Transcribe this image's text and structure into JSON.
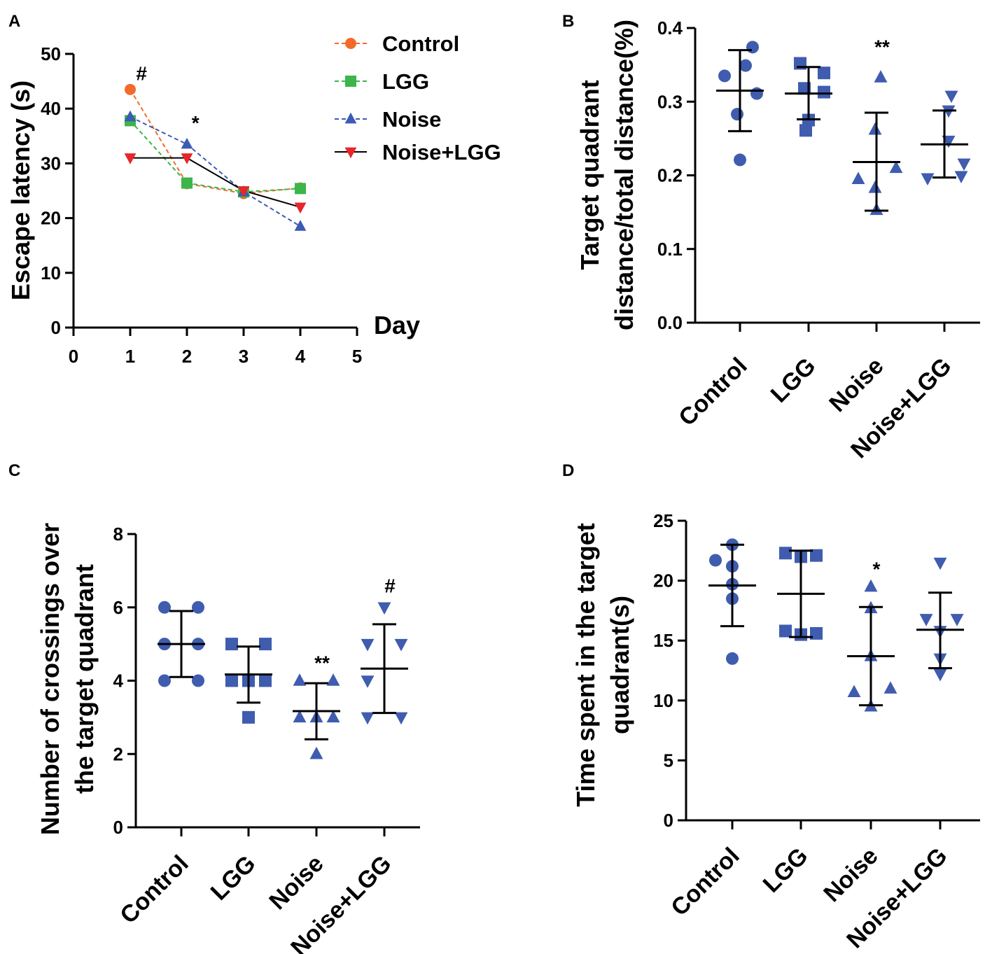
{
  "colors": {
    "control": "#F26B2A",
    "lgg": "#3CB54A",
    "noise": "#3B5BB5",
    "noise_lgg": "#E8262A",
    "scatter": "#3F5CAF",
    "axis": "#000000"
  },
  "chart_data": [
    {
      "panel": "A",
      "type": "line",
      "xlabel": "Day",
      "ylabel": "Escape latency (s)",
      "x": [
        1,
        2,
        3,
        4
      ],
      "xlim": [
        0,
        5
      ],
      "ylim": [
        0,
        50
      ],
      "xticks": [
        "0",
        "1",
        "2",
        "3",
        "4",
        "5"
      ],
      "yticks": [
        "0",
        "10",
        "20",
        "30",
        "40",
        "50"
      ],
      "series": [
        {
          "name": "Control",
          "marker": "circle",
          "line": "dashed",
          "values": [
            43.5,
            26.3,
            24.5,
            25.5
          ]
        },
        {
          "name": "LGG",
          "marker": "square",
          "line": "dashed",
          "values": [
            37.8,
            26.4,
            24.8,
            25.4
          ]
        },
        {
          "name": "Noise",
          "marker": "triangle-up",
          "line": "dashed",
          "values": [
            38.5,
            33.5,
            24.8,
            18.5
          ]
        },
        {
          "name": "Noise+LGG",
          "marker": "triangle-down",
          "line": "solid",
          "values": [
            31.0,
            31.0,
            25.0,
            22.0
          ]
        }
      ],
      "annotations": [
        {
          "text": "#",
          "x": 1.2,
          "y": 46.5
        },
        {
          "text": "*",
          "x": 2.15,
          "y": 37.5
        }
      ]
    },
    {
      "panel": "B",
      "type": "scatter",
      "ylabel_lines": [
        "Target quadrant",
        "distance/total distance(%)"
      ],
      "categories": [
        "Control",
        "LGG",
        "Noise",
        "Noise+LGG"
      ],
      "ylim": [
        0,
        0.4
      ],
      "yticks": [
        "0.0",
        "0.1",
        "0.2",
        "0.3",
        "0.4"
      ],
      "groups": [
        {
          "name": "Control",
          "marker": "circle",
          "points": [
            0.374,
            0.335,
            0.349,
            0.311,
            0.283,
            0.221
          ],
          "mean": 0.315,
          "sd_low": 0.26,
          "sd_high": 0.37
        },
        {
          "name": "LGG",
          "marker": "square",
          "points": [
            0.352,
            0.339,
            0.318,
            0.313,
            0.275,
            0.261
          ],
          "mean": 0.311,
          "sd_low": 0.276,
          "sd_high": 0.347
        },
        {
          "name": "Noise",
          "marker": "triangle-up",
          "points": [
            0.333,
            0.262,
            0.195,
            0.21,
            0.183,
            0.153
          ],
          "mean": 0.218,
          "sd_low": 0.152,
          "sd_high": 0.285
        },
        {
          "name": "Noise+LGG",
          "marker": "triangle-down",
          "points": [
            0.308,
            0.288,
            0.247,
            0.216,
            0.196,
            0.199
          ],
          "mean": 0.242,
          "sd_low": 0.197,
          "sd_high": 0.288
        }
      ],
      "annotations": [
        {
          "text": "**",
          "group": "Noise",
          "y": 0.375
        }
      ]
    },
    {
      "panel": "C",
      "type": "scatter",
      "ylabel_lines": [
        "Number of crossings over",
        "the target quadrant"
      ],
      "categories": [
        "Control",
        "LGG",
        "Noise",
        "Noise+LGG"
      ],
      "ylim": [
        0,
        8
      ],
      "yticks": [
        "0",
        "2",
        "4",
        "6",
        "8"
      ],
      "groups": [
        {
          "name": "Control",
          "marker": "circle",
          "points": [
            6,
            6,
            5,
            5,
            4,
            4
          ],
          "mean": 5.0,
          "sd_low": 4.1,
          "sd_high": 5.9
        },
        {
          "name": "LGG",
          "marker": "square",
          "points": [
            5,
            5,
            4,
            4,
            4,
            3
          ],
          "mean": 4.17,
          "sd_low": 3.4,
          "sd_high": 4.93
        },
        {
          "name": "Noise",
          "marker": "triangle-up",
          "points": [
            4,
            4,
            3,
            3,
            3,
            2
          ],
          "mean": 3.17,
          "sd_low": 2.4,
          "sd_high": 3.93
        },
        {
          "name": "Noise+LGG",
          "marker": "triangle-down",
          "points": [
            6,
            5,
            5,
            4,
            3,
            3
          ],
          "mean": 4.33,
          "sd_low": 3.12,
          "sd_high": 5.54
        }
      ],
      "annotations": [
        {
          "text": "**",
          "group": "Noise",
          "y": 4.5
        },
        {
          "text": "#",
          "group": "Noise+LGG",
          "y": 6.6
        }
      ]
    },
    {
      "panel": "D",
      "type": "scatter",
      "ylabel_lines": [
        "Time spent in the target",
        "quadrant(s)"
      ],
      "categories": [
        "Control",
        "LGG",
        "Noise",
        "Noise+LGG"
      ],
      "ylim": [
        0,
        25
      ],
      "yticks": [
        "0",
        "5",
        "10",
        "15",
        "20",
        "25"
      ],
      "groups": [
        {
          "name": "Control",
          "marker": "circle",
          "points": [
            23.0,
            21.7,
            21.2,
            19.7,
            18.5,
            13.5
          ],
          "mean": 19.6,
          "sd_low": 16.2,
          "sd_high": 23.0
        },
        {
          "name": "LGG",
          "marker": "square",
          "points": [
            22.3,
            22.1,
            22.0,
            15.8,
            15.6,
            15.5
          ],
          "mean": 18.9,
          "sd_low": 15.3,
          "sd_high": 22.5
        },
        {
          "name": "Noise",
          "marker": "triangle-up",
          "points": [
            19.5,
            17.7,
            13.7,
            11.0,
            10.7,
            9.5
          ],
          "mean": 13.7,
          "sd_low": 9.6,
          "sd_high": 17.8
        },
        {
          "name": "Noise+LGG",
          "marker": "triangle-down",
          "points": [
            21.5,
            16.8,
            16.8,
            15.8,
            13.5,
            12.2
          ],
          "mean": 15.9,
          "sd_low": 12.7,
          "sd_high": 19.0
        }
      ],
      "annotations": [
        {
          "text": "*",
          "group": "Noise",
          "y": 21.0
        }
      ]
    }
  ],
  "panels": {
    "a": {
      "letter": "A",
      "ylabel": "Escape latency (s)",
      "xlabel": "Day",
      "legend": [
        "Control",
        "LGG",
        "Noise",
        "Noise+LGG"
      ]
    },
    "b": {
      "letter": "B",
      "ylabel_1": "Target quadrant",
      "ylabel_2": "distance/total distance(%)"
    },
    "c": {
      "letter": "C",
      "ylabel_1": "Number of crossings over",
      "ylabel_2": "the target quadrant"
    },
    "d": {
      "letter": "D",
      "ylabel_1": "Time spent in the target",
      "ylabel_2": "quadrant(s)"
    }
  }
}
